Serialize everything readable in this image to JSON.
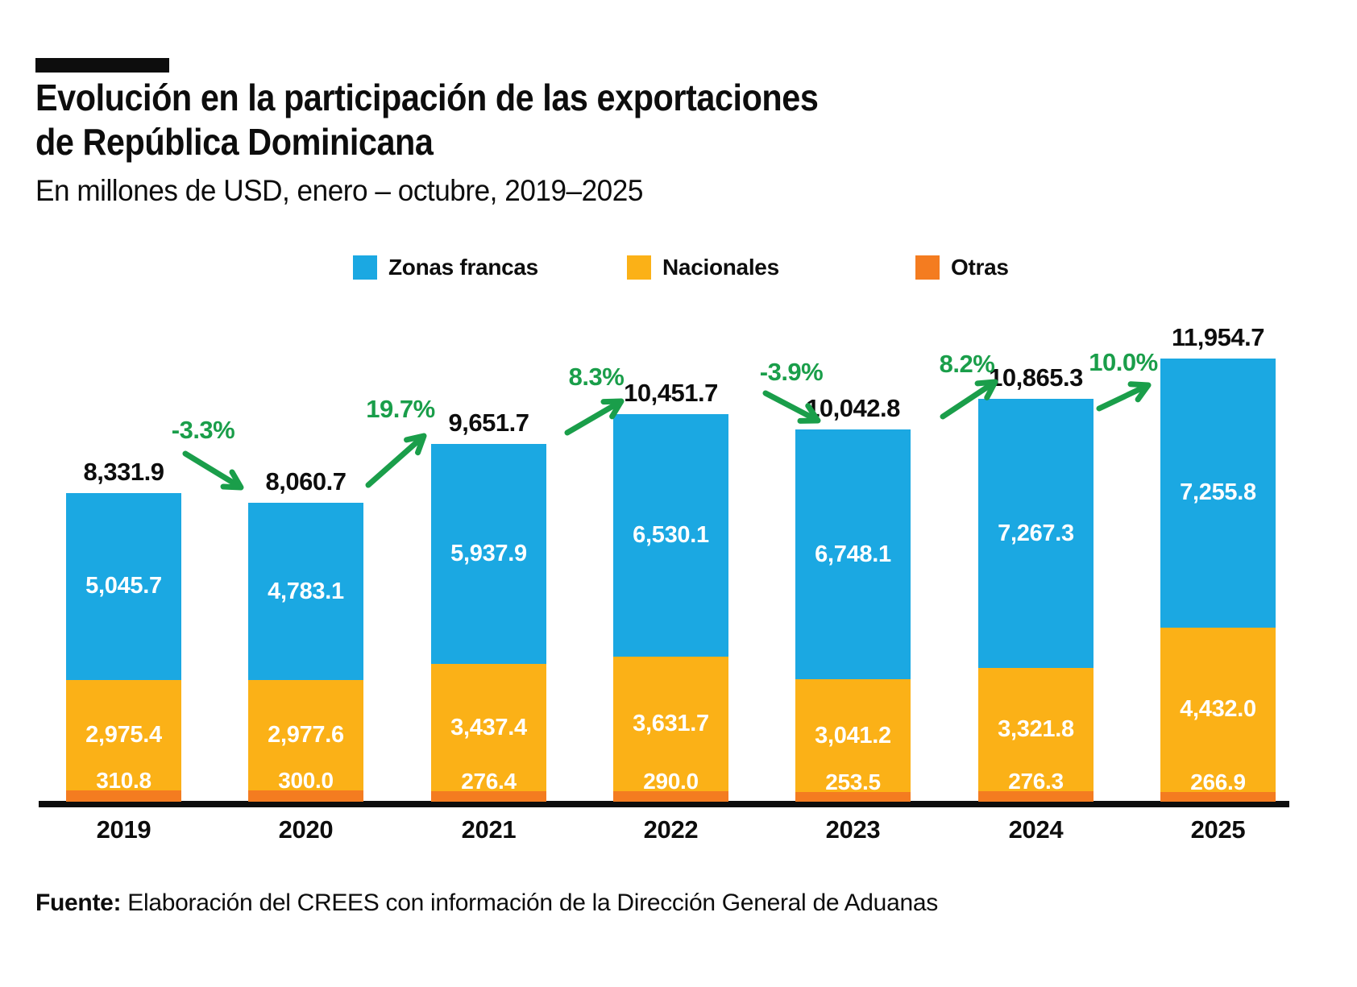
{
  "header": {
    "title_line1": "Evolución en la participación de las exportaciones",
    "title_line2": "de República Dominicana",
    "subtitle": "En millones de USD, enero – octubre, 2019–2025"
  },
  "footer": {
    "source_label": "Fuente:",
    "source_text": " Elaboración del CREES con información de la Dirección General de Aduanas"
  },
  "colors": {
    "zonas_francas": "#1BA8E2",
    "nacionales": "#FBB117",
    "otras": "#F47C20",
    "growth_green": "#1A9E4A",
    "text_black": "#0D0D0D"
  },
  "chart_data": {
    "type": "bar",
    "stacked": true,
    "title": "Evolución en la participación de las exportaciones de República Dominicana",
    "subtitle": "En millones de USD, enero – octubre, 2019–2025",
    "unit": "millones de USD",
    "legend_position": "top",
    "grid": false,
    "ylim": [
      0,
      11954.7
    ],
    "categories": [
      "2019",
      "2020",
      "2021",
      "2022",
      "2023",
      "2024",
      "2025"
    ],
    "series": [
      {
        "name": "Zonas francas",
        "color": "#1BA8E2",
        "values": [
          5045.7,
          4783.1,
          5937.9,
          6530.1,
          6748.1,
          7267.3,
          7255.8
        ],
        "labels": [
          "5,045.7",
          "4,783.1",
          "5,937.9",
          "6,530.1",
          "6,748.1",
          "7,267.3",
          "7,255.8"
        ]
      },
      {
        "name": "Nacionales",
        "color": "#FBB117",
        "values": [
          2975.4,
          2977.6,
          3437.4,
          3631.7,
          3041.2,
          3321.8,
          4432.0
        ],
        "labels": [
          "2,975.4",
          "2,977.6",
          "3,437.4",
          "3,631.7",
          "3,041.2",
          "3,321.8",
          "4,432.0"
        ]
      },
      {
        "name": "Otras",
        "color": "#F47C20",
        "values": [
          310.8,
          300.0,
          276.4,
          290.0,
          253.5,
          276.3,
          266.9
        ],
        "labels": [
          "310.8",
          "300.0",
          "276.4",
          "290.0",
          "253.5",
          "276.3",
          "266.9"
        ]
      }
    ],
    "totals": [
      8331.9,
      8060.7,
      9651.7,
      10451.7,
      10042.8,
      10865.3,
      11954.7
    ],
    "total_labels": [
      "8,331.9",
      "8,060.7",
      "9,651.7",
      "10,451.7",
      "10,042.8",
      "10,865.3",
      "11,954.7"
    ],
    "pct_changes": [
      "-3.3%",
      "19.7%",
      "8.3%",
      "-3.9%",
      "8.2%",
      "10.0%"
    ]
  }
}
